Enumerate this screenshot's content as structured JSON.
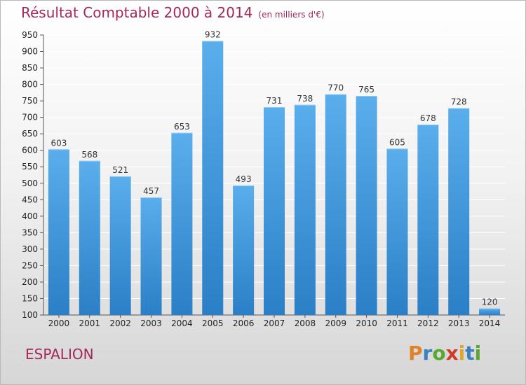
{
  "header": {
    "title": "Résultat Comptable 2000 à 2014",
    "subtitle": "(en milliers d'€)"
  },
  "footer": {
    "commune": "ESPALION",
    "logo_text": "Proxiti"
  },
  "colors": {
    "title": "#a4285a",
    "bar_top": "#5aaeec",
    "bar_bottom": "#2a7fc6",
    "grid": "#ffffff"
  },
  "chart_data": {
    "type": "bar",
    "title": "Résultat Comptable 2000 à 2014",
    "subtitle": "(en milliers d'€)",
    "categories": [
      "2000",
      "2001",
      "2002",
      "2003",
      "2004",
      "2005",
      "2006",
      "2007",
      "2008",
      "2009",
      "2010",
      "2011",
      "2012",
      "2013",
      "2014"
    ],
    "values": [
      603,
      568,
      521,
      457,
      653,
      932,
      493,
      731,
      738,
      770,
      765,
      605,
      678,
      728,
      120
    ],
    "ylim": [
      100,
      950
    ],
    "yticks": [
      100,
      150,
      200,
      250,
      300,
      350,
      400,
      450,
      500,
      550,
      600,
      650,
      700,
      750,
      800,
      850,
      900,
      950
    ],
    "grid": true,
    "data_labels": true
  }
}
